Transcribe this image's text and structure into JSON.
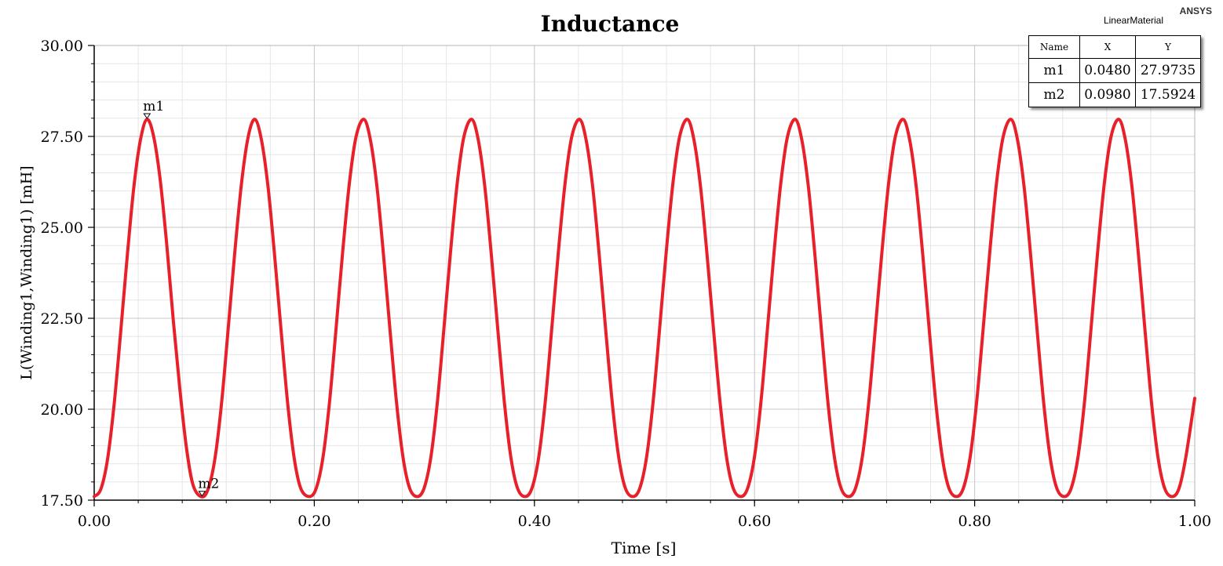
{
  "header": {
    "brand": "ANSYS",
    "design_name": "LinearMaterial"
  },
  "chart_data": {
    "type": "line",
    "title": "Inductance",
    "xlabel": "Time [s]",
    "ylabel": "L(Winding1,Winding1) [mH]",
    "xlim": [
      0.0,
      1.0
    ],
    "ylim": [
      17.5,
      30.0
    ],
    "x_ticks": [
      "0.00",
      "0.20",
      "0.40",
      "0.60",
      "0.80",
      "1.00"
    ],
    "y_ticks": [
      "17.50",
      "20.00",
      "22.50",
      "25.00",
      "27.50",
      "30.00"
    ],
    "grid": true,
    "series": [
      {
        "color": "#e8202a",
        "x": [
          0.0,
          0.006,
          0.012,
          0.018,
          0.024,
          0.03,
          0.036,
          0.042,
          0.048,
          0.054,
          0.06,
          0.066,
          0.072,
          0.078,
          0.084,
          0.09,
          0.098,
          0.104,
          0.11,
          0.116,
          0.122,
          0.128,
          0.134,
          0.14,
          0.146,
          0.152,
          0.158,
          0.164,
          0.17,
          0.176,
          0.182,
          0.188,
          0.196,
          0.202,
          0.208,
          0.214,
          0.22,
          0.226,
          0.232,
          0.238,
          0.245,
          0.251,
          0.257,
          0.263,
          0.269,
          0.275,
          0.281,
          0.287,
          0.294,
          0.3,
          0.306,
          0.312,
          0.318,
          0.324,
          0.33,
          0.336,
          0.343,
          0.349,
          0.355,
          0.361,
          0.367,
          0.373,
          0.379,
          0.385,
          0.392,
          0.398,
          0.404,
          0.41,
          0.416,
          0.422,
          0.428,
          0.434,
          0.441,
          0.447,
          0.453,
          0.459,
          0.465,
          0.471,
          0.477,
          0.483,
          0.49,
          0.496,
          0.502,
          0.508,
          0.514,
          0.52,
          0.526,
          0.532,
          0.539,
          0.545,
          0.551,
          0.557,
          0.563,
          0.569,
          0.575,
          0.581,
          0.588,
          0.594,
          0.6,
          0.606,
          0.612,
          0.618,
          0.624,
          0.63,
          0.637,
          0.643,
          0.649,
          0.655,
          0.661,
          0.667,
          0.673,
          0.679,
          0.686,
          0.692,
          0.698,
          0.704,
          0.71,
          0.716,
          0.722,
          0.728,
          0.735,
          0.741,
          0.747,
          0.753,
          0.759,
          0.765,
          0.771,
          0.777,
          0.784,
          0.79,
          0.796,
          0.802,
          0.808,
          0.814,
          0.82,
          0.826,
          0.833,
          0.839,
          0.845,
          0.851,
          0.857,
          0.863,
          0.869,
          0.875,
          0.882,
          0.888,
          0.894,
          0.9,
          0.906,
          0.912,
          0.918,
          0.924,
          0.931,
          0.937,
          0.943,
          0.949,
          0.955,
          0.961,
          0.967,
          0.973,
          0.98,
          0.986,
          0.992,
          1.0
        ],
        "y": [
          17.6,
          17.8,
          18.6,
          20.1,
          22.1,
          24.2,
          26.1,
          27.4,
          27.97,
          27.5,
          26.3,
          24.5,
          22.4,
          20.5,
          18.9,
          17.9,
          17.59,
          17.85,
          18.7,
          20.25,
          22.3,
          24.4,
          26.25,
          27.5,
          27.97,
          27.4,
          26.1,
          24.2,
          22.1,
          20.1,
          18.6,
          17.8,
          17.6,
          17.85,
          18.7,
          20.25,
          22.3,
          24.4,
          26.25,
          27.5,
          27.97,
          27.4,
          26.1,
          24.2,
          22.1,
          20.1,
          18.6,
          17.8,
          17.6,
          17.85,
          18.7,
          20.25,
          22.3,
          24.4,
          26.25,
          27.5,
          27.97,
          27.4,
          26.1,
          24.2,
          22.1,
          20.1,
          18.6,
          17.8,
          17.6,
          17.85,
          18.7,
          20.25,
          22.3,
          24.4,
          26.25,
          27.5,
          27.97,
          27.4,
          26.1,
          24.2,
          22.1,
          20.1,
          18.6,
          17.8,
          17.6,
          17.85,
          18.7,
          20.25,
          22.3,
          24.4,
          26.25,
          27.5,
          27.97,
          27.4,
          26.1,
          24.2,
          22.1,
          20.1,
          18.6,
          17.8,
          17.6,
          17.85,
          18.7,
          20.25,
          22.3,
          24.4,
          26.25,
          27.5,
          27.97,
          27.4,
          26.1,
          24.2,
          22.1,
          20.1,
          18.6,
          17.8,
          17.6,
          17.85,
          18.7,
          20.25,
          22.3,
          24.4,
          26.25,
          27.5,
          27.97,
          27.4,
          26.1,
          24.2,
          22.1,
          20.1,
          18.6,
          17.8,
          17.6,
          17.85,
          18.7,
          20.25,
          22.3,
          24.4,
          26.25,
          27.5,
          27.97,
          27.4,
          26.1,
          24.2,
          22.1,
          20.1,
          18.6,
          17.8,
          17.6,
          17.85,
          18.7,
          20.25,
          22.3,
          24.4,
          26.25,
          27.5,
          27.97,
          27.4,
          26.1,
          24.2,
          22.1,
          20.1,
          18.6,
          17.8,
          17.6,
          17.85,
          18.7,
          20.3
        ]
      }
    ],
    "markers": [
      {
        "name": "m1",
        "x": 0.048,
        "y": 27.9735
      },
      {
        "name": "m2",
        "x": 0.098,
        "y": 17.5924
      }
    ]
  },
  "marker_table": {
    "headers": [
      "Name",
      "X",
      "Y"
    ],
    "rows": [
      [
        "m1",
        "0.0480",
        "27.9735"
      ],
      [
        "m2",
        "0.0980",
        "17.5924"
      ]
    ]
  }
}
